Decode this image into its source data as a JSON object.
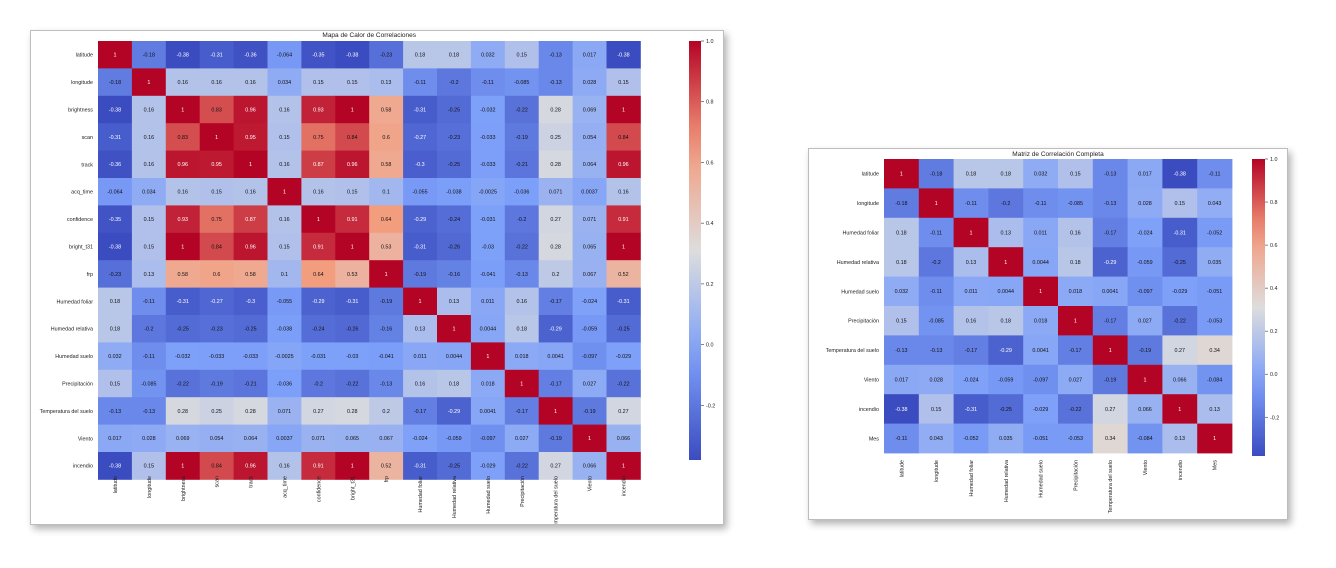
{
  "chart_data": [
    {
      "type": "heatmap",
      "title": "Mapa de Calor de Correlaciones",
      "colormap": "coolwarm",
      "vmin": -0.38,
      "vmax": 1.0,
      "colorbar_ticks": [
        "1.0",
        "0.8",
        "0.6",
        "0.4",
        "0.2",
        "0.0",
        "-0.2"
      ],
      "labels": [
        "latitude",
        "longitude",
        "brightness",
        "scan",
        "track",
        "acq_time",
        "confidence",
        "bright_t31",
        "frp",
        "Humedad foliar",
        "Humedad relativa",
        "Humedad suelo",
        "Precipitación",
        "Temperatura del suelo",
        "Viento",
        "incendio"
      ],
      "matrix": [
        [
          "1",
          "-0.18",
          "-0.38",
          "-0.31",
          "-0.36",
          "-0.064",
          "-0.35",
          "-0.38",
          "-0.23",
          "0.18",
          "0.18",
          "0.032",
          "0.15",
          "-0.13",
          "0.017",
          "-0.38"
        ],
        [
          "-0.18",
          "1",
          "0.16",
          "0.16",
          "0.16",
          "0.034",
          "0.15",
          "0.15",
          "0.13",
          "-0.11",
          "-0.2",
          "-0.11",
          "-0.085",
          "-0.13",
          "0.028",
          "0.15"
        ],
        [
          "-0.38",
          "0.16",
          "1",
          "0.83",
          "0.96",
          "0.16",
          "0.93",
          "1",
          "0.58",
          "-0.31",
          "-0.25",
          "-0.032",
          "-0.22",
          "0.28",
          "0.069",
          "1"
        ],
        [
          "-0.31",
          "0.16",
          "0.83",
          "1",
          "0.95",
          "0.15",
          "0.75",
          "0.84",
          "0.6",
          "-0.27",
          "-0.23",
          "-0.033",
          "-0.19",
          "0.25",
          "0.054",
          "0.84"
        ],
        [
          "-0.36",
          "0.16",
          "0.96",
          "0.95",
          "1",
          "0.16",
          "0.87",
          "0.96",
          "0.58",
          "-0.3",
          "-0.25",
          "-0.033",
          "-0.21",
          "0.28",
          "0.064",
          "0.96"
        ],
        [
          "-0.064",
          "0.034",
          "0.16",
          "0.15",
          "0.16",
          "1",
          "0.16",
          "0.15",
          "0.1",
          "-0.055",
          "-0.038",
          "-0.0025",
          "-0.036",
          "0.071",
          "0.0037",
          "0.16"
        ],
        [
          "-0.35",
          "0.15",
          "0.93",
          "0.75",
          "0.87",
          "0.16",
          "1",
          "0.91",
          "0.64",
          "-0.29",
          "-0.24",
          "-0.031",
          "-0.2",
          "0.27",
          "0.071",
          "0.91"
        ],
        [
          "-0.38",
          "0.15",
          "1",
          "0.84",
          "0.96",
          "0.15",
          "0.91",
          "1",
          "0.53",
          "-0.31",
          "-0.26",
          "-0.03",
          "-0.22",
          "0.28",
          "0.065",
          "1"
        ],
        [
          "-0.23",
          "0.13",
          "0.58",
          "0.6",
          "0.58",
          "0.1",
          "0.64",
          "0.53",
          "1",
          "-0.19",
          "-0.16",
          "-0.041",
          "-0.13",
          "0.2",
          "0.067",
          "0.52"
        ],
        [
          "0.18",
          "-0.11",
          "-0.31",
          "-0.27",
          "-0.3",
          "-0.055",
          "-0.29",
          "-0.31",
          "-0.19",
          "1",
          "0.13",
          "0.011",
          "0.16",
          "-0.17",
          "-0.024",
          "-0.31"
        ],
        [
          "0.18",
          "-0.2",
          "-0.25",
          "-0.23",
          "-0.25",
          "-0.038",
          "-0.24",
          "-0.26",
          "-0.16",
          "0.13",
          "1",
          "0.0044",
          "0.18",
          "-0.29",
          "-0.059",
          "-0.25"
        ],
        [
          "0.032",
          "-0.11",
          "-0.032",
          "-0.033",
          "-0.033",
          "-0.0025",
          "-0.031",
          "-0.03",
          "-0.041",
          "0.011",
          "0.0044",
          "1",
          "0.018",
          "0.0041",
          "-0.097",
          "-0.029"
        ],
        [
          "0.15",
          "-0.085",
          "-0.22",
          "-0.19",
          "-0.21",
          "-0.036",
          "-0.2",
          "-0.22",
          "-0.13",
          "0.16",
          "0.18",
          "0.018",
          "1",
          "-0.17",
          "0.027",
          "-0.22"
        ],
        [
          "-0.13",
          "-0.13",
          "0.28",
          "0.25",
          "0.28",
          "0.071",
          "0.27",
          "0.28",
          "0.2",
          "-0.17",
          "-0.29",
          "0.0041",
          "-0.17",
          "1",
          "-0.19",
          "0.27"
        ],
        [
          "0.017",
          "0.028",
          "0.069",
          "0.054",
          "0.064",
          "0.0037",
          "0.071",
          "0.065",
          "0.067",
          "-0.024",
          "-0.059",
          "-0.097",
          "0.027",
          "-0.19",
          "1",
          "0.066"
        ],
        [
          "-0.38",
          "0.15",
          "1",
          "0.84",
          "0.96",
          "0.16",
          "0.91",
          "1",
          "0.52",
          "-0.31",
          "-0.25",
          "-0.029",
          "-0.22",
          "0.27",
          "0.066",
          "1"
        ]
      ]
    },
    {
      "type": "heatmap",
      "title": "Matriz de Correlación Completa",
      "colormap": "coolwarm",
      "vmin": -0.38,
      "vmax": 1.0,
      "colorbar_ticks": [
        "1.0",
        "0.8",
        "0.6",
        "0.4",
        "0.2",
        "0.0",
        "-0.2"
      ],
      "labels": [
        "latitude",
        "longitude",
        "Humedad foliar",
        "Humedad relativa",
        "Humedad suelo",
        "Precipitación",
        "Temperatura del suelo",
        "Viento",
        "incendio",
        "Mes"
      ],
      "matrix": [
        [
          "1",
          "-0.18",
          "0.18",
          "0.18",
          "0.032",
          "0.15",
          "-0.13",
          "0.017",
          "-0.38",
          "-0.11"
        ],
        [
          "-0.18",
          "1",
          "-0.11",
          "-0.2",
          "-0.11",
          "-0.085",
          "-0.13",
          "0.028",
          "0.15",
          "0.043"
        ],
        [
          "0.18",
          "-0.11",
          "1",
          "0.13",
          "0.011",
          "0.16",
          "-0.17",
          "-0.024",
          "-0.31",
          "-0.052"
        ],
        [
          "0.18",
          "-0.2",
          "0.13",
          "1",
          "0.0044",
          "0.18",
          "-0.29",
          "-0.059",
          "-0.25",
          "0.035"
        ],
        [
          "0.032",
          "-0.11",
          "0.011",
          "0.0044",
          "1",
          "0.018",
          "0.0041",
          "-0.097",
          "-0.029",
          "-0.051"
        ],
        [
          "0.15",
          "-0.085",
          "0.16",
          "0.18",
          "0.018",
          "1",
          "-0.17",
          "0.027",
          "-0.22",
          "-0.053"
        ],
        [
          "-0.13",
          "-0.13",
          "-0.17",
          "-0.29",
          "0.0041",
          "-0.17",
          "1",
          "-0.19",
          "0.27",
          "0.34"
        ],
        [
          "0.017",
          "0.028",
          "-0.024",
          "-0.059",
          "-0.097",
          "0.027",
          "-0.19",
          "1",
          "0.066",
          "-0.084"
        ],
        [
          "-0.38",
          "0.15",
          "-0.31",
          "-0.25",
          "-0.029",
          "-0.22",
          "0.27",
          "0.066",
          "1",
          "0.13"
        ],
        [
          "-0.11",
          "0.043",
          "-0.052",
          "0.035",
          "-0.051",
          "-0.053",
          "0.34",
          "-0.084",
          "0.13",
          "1"
        ]
      ]
    }
  ]
}
